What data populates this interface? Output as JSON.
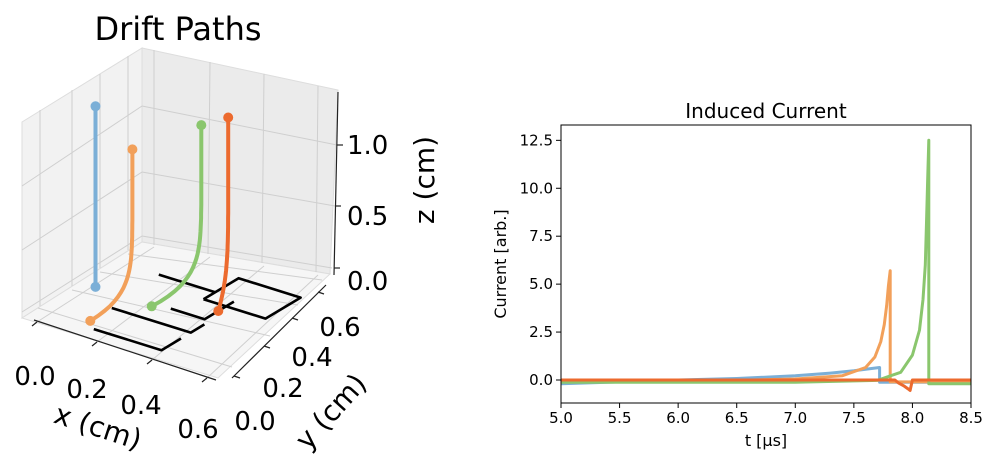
{
  "chart_data": [
    {
      "type": "line",
      "projection": "3d",
      "title": "Drift Paths",
      "xlabel": "x (cm)",
      "ylabel": "y (cm)",
      "zlabel": "z (cm)",
      "xticks": [
        "0.0",
        "0.2",
        "0.4",
        "0.6"
      ],
      "yticks": [
        "0.0",
        "0.2",
        "0.4",
        "0.6"
      ],
      "zticks": [
        "0.0",
        "0.5",
        "1.0"
      ],
      "xlim": [
        -0.1,
        0.7
      ],
      "ylim": [
        0,
        0.7
      ],
      "zlim": [
        0,
        1.25
      ],
      "grid": true,
      "electrodes": [
        [
          [
            0.16,
            0.06,
            0
          ],
          [
            0.4,
            0.06,
            0
          ],
          [
            0.4,
            0.16,
            0
          ]
        ],
        [
          [
            0.12,
            0.21,
            0
          ],
          [
            0.4,
            0.21,
            0
          ],
          [
            0.4,
            0.28,
            0
          ]
        ],
        [
          [
            0.26,
            0.31,
            0
          ],
          [
            0.38,
            0.31,
            0
          ],
          [
            0.38,
            0.46,
            0
          ]
        ],
        [
          [
            0.3,
            0.42,
            0
          ],
          [
            0.52,
            0.42,
            0
          ],
          [
            0.52,
            0.6,
            0
          ],
          [
            0.3,
            0.6,
            0
          ],
          [
            0.3,
            0.42,
            0
          ]
        ],
        [
          [
            0.1,
            0.48,
            0
          ],
          [
            0.3,
            0.48,
            0
          ]
        ]
      ],
      "series": [
        {
          "color": "#7bafd7",
          "start": [
            0.0,
            0.3,
            1.05
          ],
          "end": [
            0.0,
            0.3,
            0.0
          ]
        },
        {
          "color": "#f2a05a",
          "start": [
            0.2,
            0.2,
            0.97
          ],
          "end": [
            0.12,
            0.1,
            0.0
          ]
        },
        {
          "color": "#8ac66d",
          "start": [
            0.32,
            0.38,
            1.05
          ],
          "end": [
            0.22,
            0.27,
            0.02
          ]
        },
        {
          "color": "#ec6a2e",
          "start": [
            0.36,
            0.46,
            1.06
          ],
          "end": [
            0.38,
            0.38,
            0.0
          ]
        }
      ]
    },
    {
      "type": "line",
      "title": "Induced Current",
      "xlabel": "t [μs]",
      "ylabel": "Current [arb.]",
      "xlim": [
        5.0,
        8.5
      ],
      "ylim": [
        -1.2,
        13.3
      ],
      "xticks": [
        "5.0",
        "5.5",
        "6.0",
        "6.5",
        "7.0",
        "7.5",
        "8.0",
        "8.5"
      ],
      "yticks": [
        "0.0",
        "2.5",
        "5.0",
        "7.5",
        "10.0",
        "12.5"
      ],
      "grid": false,
      "series": [
        {
          "color": "#7bafd7",
          "x": [
            5.0,
            5.5,
            6.0,
            6.5,
            7.0,
            7.3,
            7.5,
            7.6,
            7.72,
            7.72,
            7.73,
            8.5
          ],
          "y": [
            -0.2,
            -0.1,
            0.0,
            0.08,
            0.22,
            0.36,
            0.48,
            0.56,
            0.65,
            -0.12,
            -0.12,
            -0.12
          ]
        },
        {
          "color": "#f2a05a",
          "x": [
            5.0,
            6.5,
            7.0,
            7.4,
            7.6,
            7.68,
            7.73,
            7.76,
            7.78,
            7.795,
            7.81,
            7.81,
            7.82,
            8.5
          ],
          "y": [
            -0.08,
            -0.02,
            0.05,
            0.22,
            0.65,
            1.2,
            2.0,
            2.9,
            3.9,
            4.9,
            5.7,
            -0.1,
            -0.1,
            -0.1
          ]
        },
        {
          "color": "#8ac66d",
          "x": [
            5.0,
            7.0,
            7.7,
            7.9,
            8.0,
            8.06,
            8.09,
            8.11,
            8.12,
            8.13,
            8.14,
            8.14,
            8.15,
            8.5
          ],
          "y": [
            -0.12,
            -0.12,
            -0.02,
            0.4,
            1.3,
            2.6,
            4.2,
            6.0,
            8.2,
            10.5,
            12.5,
            -0.2,
            -0.2,
            -0.2
          ]
        },
        {
          "color": "#ec6a2e",
          "x": [
            5.0,
            7.85,
            7.88,
            7.93,
            7.96,
            7.98,
            8.0,
            8.5
          ],
          "y": [
            0.0,
            0.0,
            -0.15,
            -0.32,
            -0.45,
            -0.55,
            0.0,
            0.0
          ]
        }
      ]
    }
  ]
}
